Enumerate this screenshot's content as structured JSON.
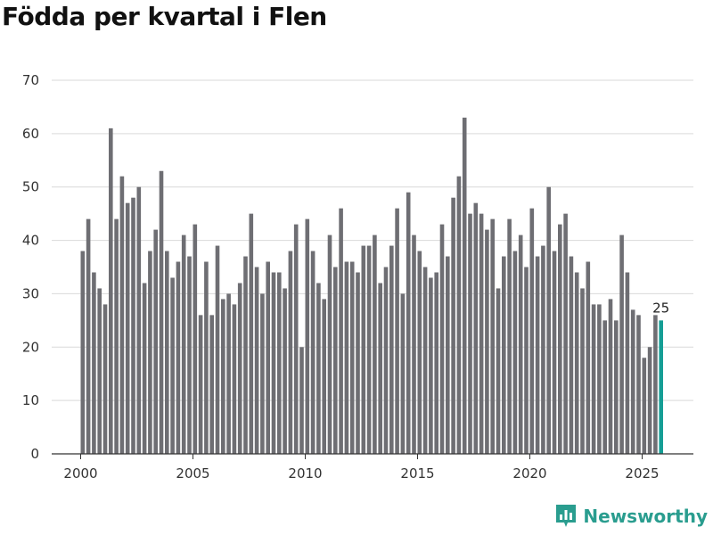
{
  "chart_data": {
    "type": "bar",
    "title": "Födda per kvartal i Flen",
    "xlabel": "",
    "ylabel": "",
    "ylim": [
      0,
      70
    ],
    "yticks": [
      0,
      10,
      20,
      30,
      40,
      50,
      60,
      70
    ],
    "xticks": [
      2000,
      2005,
      2010,
      2015,
      2020,
      2025
    ],
    "grid": true,
    "bar_color": "#6e6e73",
    "highlight_color": "#159e95",
    "start_year": 2000,
    "start_quarter": 1,
    "categories": [
      "2000 K1",
      "2000 K2",
      "2000 K3",
      "2000 K4",
      "2001 K1",
      "2001 K2",
      "2001 K3",
      "2001 K4",
      "2002 K1",
      "2002 K2",
      "2002 K3",
      "2002 K4",
      "2003 K1",
      "2003 K2",
      "2003 K3",
      "2003 K4",
      "2004 K1",
      "2004 K2",
      "2004 K3",
      "2004 K4",
      "2005 K1",
      "2005 K2",
      "2005 K3",
      "2005 K4",
      "2006 K1",
      "2006 K2",
      "2006 K3",
      "2006 K4",
      "2007 K1",
      "2007 K2",
      "2007 K3",
      "2007 K4",
      "2008 K1",
      "2008 K2",
      "2008 K3",
      "2008 K4",
      "2009 K1",
      "2009 K2",
      "2009 K3",
      "2009 K4",
      "2010 K1",
      "2010 K2",
      "2010 K3",
      "2010 K4",
      "2011 K1",
      "2011 K2",
      "2011 K3",
      "2011 K4",
      "2012 K1",
      "2012 K2",
      "2012 K3",
      "2012 K4",
      "2013 K1",
      "2013 K2",
      "2013 K3",
      "2013 K4",
      "2014 K1",
      "2014 K2",
      "2014 K3",
      "2014 K4",
      "2015 K1",
      "2015 K2",
      "2015 K3",
      "2015 K4",
      "2016 K1",
      "2016 K2",
      "2016 K3",
      "2016 K4",
      "2017 K1",
      "2017 K2",
      "2017 K3",
      "2017 K4",
      "2018 K1",
      "2018 K2",
      "2018 K3",
      "2018 K4",
      "2019 K1",
      "2019 K2",
      "2019 K3",
      "2019 K4",
      "2020 K1",
      "2020 K2",
      "2020 K3",
      "2020 K4",
      "2021 K1",
      "2021 K2",
      "2021 K3",
      "2021 K4",
      "2022 K1",
      "2022 K2",
      "2022 K3",
      "2022 K4",
      "2023 K1",
      "2023 K2",
      "2023 K3",
      "2023 K4",
      "2024 K1",
      "2024 K2",
      "2024 K3",
      "2024 K4",
      "2025 K1",
      "2025 K2",
      "2025 K3",
      "2025 K4"
    ],
    "values": [
      38,
      44,
      34,
      31,
      28,
      61,
      44,
      52,
      47,
      48,
      50,
      32,
      38,
      42,
      53,
      38,
      33,
      36,
      41,
      37,
      43,
      26,
      36,
      26,
      39,
      29,
      30,
      28,
      32,
      37,
      45,
      35,
      30,
      36,
      34,
      34,
      31,
      38,
      43,
      20,
      44,
      38,
      32,
      29,
      41,
      35,
      46,
      36,
      36,
      34,
      39,
      39,
      41,
      32,
      35,
      39,
      46,
      30,
      49,
      41,
      38,
      35,
      33,
      34,
      43,
      37,
      48,
      52,
      63,
      45,
      47,
      45,
      42,
      44,
      31,
      37,
      44,
      38,
      41,
      35,
      46,
      37,
      39,
      50,
      38,
      43,
      45,
      37,
      34,
      31,
      36,
      28,
      28,
      25,
      29,
      25,
      41,
      34,
      27,
      26,
      18,
      20,
      26,
      25
    ],
    "highlight_index": 103,
    "annotations": [
      {
        "index": 103,
        "text": "25"
      }
    ]
  },
  "brand": {
    "name": "Newsworthy",
    "icon": "newsworthy-logo-icon"
  }
}
